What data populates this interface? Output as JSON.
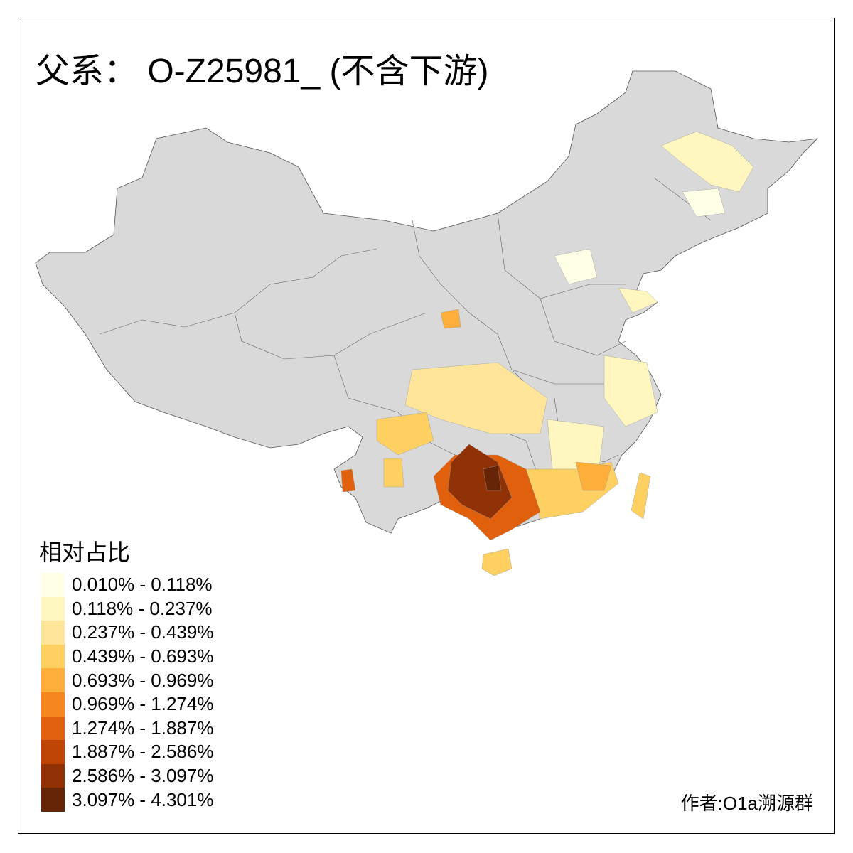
{
  "title": "父系： O-Z25981_ (不含下游)",
  "legend": {
    "title": "相对占比",
    "items": [
      {
        "label": "0.010% - 0.118%",
        "color": "#FFFFE5"
      },
      {
        "label": "0.118% - 0.237%",
        "color": "#FFF6C0"
      },
      {
        "label": "0.237% - 0.439%",
        "color": "#FEE59A"
      },
      {
        "label": "0.439% - 0.693%",
        "color": "#FED062"
      },
      {
        "label": "0.693% - 0.969%",
        "color": "#FEAE3A"
      },
      {
        "label": "0.969% - 1.274%",
        "color": "#F6861F"
      },
      {
        "label": "1.274% - 1.887%",
        "color": "#E0600E"
      },
      {
        "label": "1.887% - 2.586%",
        "color": "#BF4504"
      },
      {
        "label": "2.586% - 3.097%",
        "color": "#913106"
      },
      {
        "label": "3.097% - 4.301%",
        "color": "#662506"
      }
    ]
  },
  "no_data_color": "#D9D9D9",
  "credit": "作者:O1a溯源群"
}
